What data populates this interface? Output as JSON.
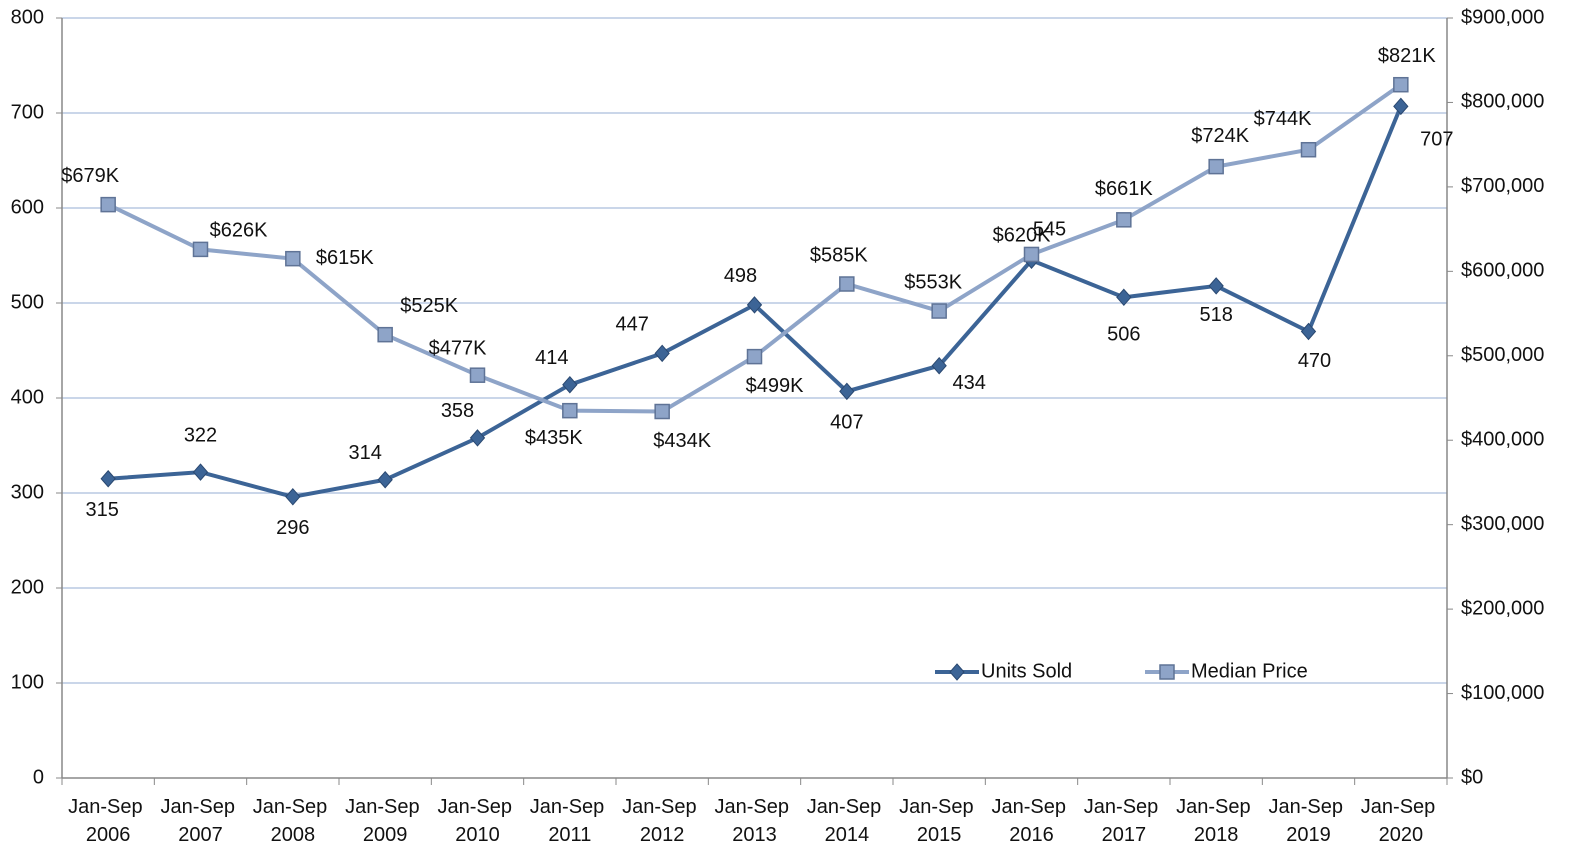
{
  "chart_data": {
    "type": "line",
    "categories": [
      "Jan-Sep 2006",
      "Jan-Sep 2007",
      "Jan-Sep 2008",
      "Jan-Sep 2009",
      "Jan-Sep 2010",
      "Jan-Sep 2011",
      "Jan-Sep 2012",
      "Jan-Sep 2013",
      "Jan-Sep 2014",
      "Jan-Sep 2015",
      "Jan-Sep 2016",
      "Jan-Sep 2017",
      "Jan-Sep 2018",
      "Jan-Sep 2019",
      "Jan-Sep 2020"
    ],
    "series": [
      {
        "name": "Units Sold",
        "color": "#3c6496",
        "marker": "diamond",
        "values": [
          315,
          322,
          296,
          314,
          358,
          414,
          447,
          498,
          407,
          434,
          545,
          506,
          518,
          470,
          707
        ]
      },
      {
        "name": "Median Price",
        "color": "#8ea4c8",
        "marker": "square",
        "axis": "y2",
        "values": [
          679000,
          626000,
          615000,
          525000,
          477000,
          435000,
          434000,
          499000,
          585000,
          553000,
          620000,
          661000,
          724000,
          744000,
          821000
        ],
        "value_labels": [
          "$679K",
          "$626K",
          "$615K",
          "$525K",
          "$477K",
          "$435K",
          "$434K",
          "$499K",
          "$585K",
          "$553K",
          "$620K",
          "$661K",
          "$724K",
          "$744K",
          "$821K"
        ]
      }
    ],
    "ylim": [
      0,
      800
    ],
    "yticks": [
      0,
      100,
      200,
      300,
      400,
      500,
      600,
      700,
      800
    ],
    "y2lim": [
      0,
      900000
    ],
    "y2ticks": [
      {
        "value": 0,
        "label": "$0"
      },
      {
        "value": 100000,
        "label": "$100,000"
      },
      {
        "value": 200000,
        "label": "$200,000"
      },
      {
        "value": 300000,
        "label": "$300,000"
      },
      {
        "value": 400000,
        "label": "$400,000"
      },
      {
        "value": 500000,
        "label": "$500,000"
      },
      {
        "value": 600000,
        "label": "$600,000"
      },
      {
        "value": 700000,
        "label": "$700,000"
      },
      {
        "value": 800000,
        "label": "$800,000"
      },
      {
        "value": 900000,
        "label": "$900,000"
      }
    ],
    "grid": true,
    "legend": "lower right"
  }
}
